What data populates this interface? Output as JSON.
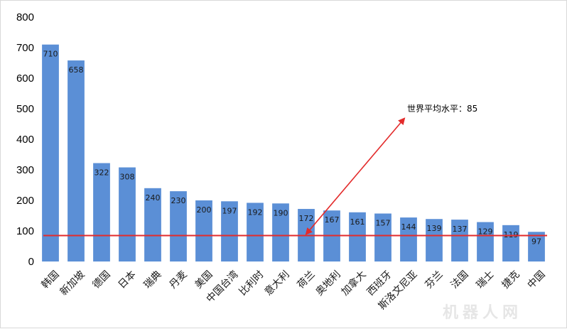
{
  "chart_data": {
    "type": "bar",
    "title": "",
    "xlabel": "",
    "ylabel": "",
    "ylim": [
      0,
      800
    ],
    "yticks": [
      0,
      100,
      200,
      300,
      400,
      500,
      600,
      700,
      800
    ],
    "grid": false,
    "legend": "none",
    "categories": [
      "韩国",
      "新加坡",
      "德国",
      "日本",
      "瑞典",
      "丹麦",
      "美国",
      "中国台湾",
      "比利时",
      "意大利",
      "荷兰",
      "奥地利",
      "加拿大",
      "西班牙",
      "斯洛文尼亚",
      "芬兰",
      "法国",
      "瑞士",
      "捷克",
      "中国"
    ],
    "values": [
      710,
      658,
      322,
      308,
      240,
      230,
      200,
      197,
      192,
      190,
      172,
      167,
      161,
      157,
      144,
      139,
      137,
      129,
      119,
      97
    ],
    "bar_color": "#5b8fd6",
    "reference_line": {
      "value": 85,
      "color": "#e32b2b"
    },
    "annotation": {
      "text": "世界平均水平：85",
      "arrow_color": "#e32b2b",
      "arrow_from_category": "荷兰",
      "arrow_to_category": "西班牙",
      "arrow_from_value": 90,
      "arrow_to_value": 468
    }
  },
  "watermark": "机器人网"
}
